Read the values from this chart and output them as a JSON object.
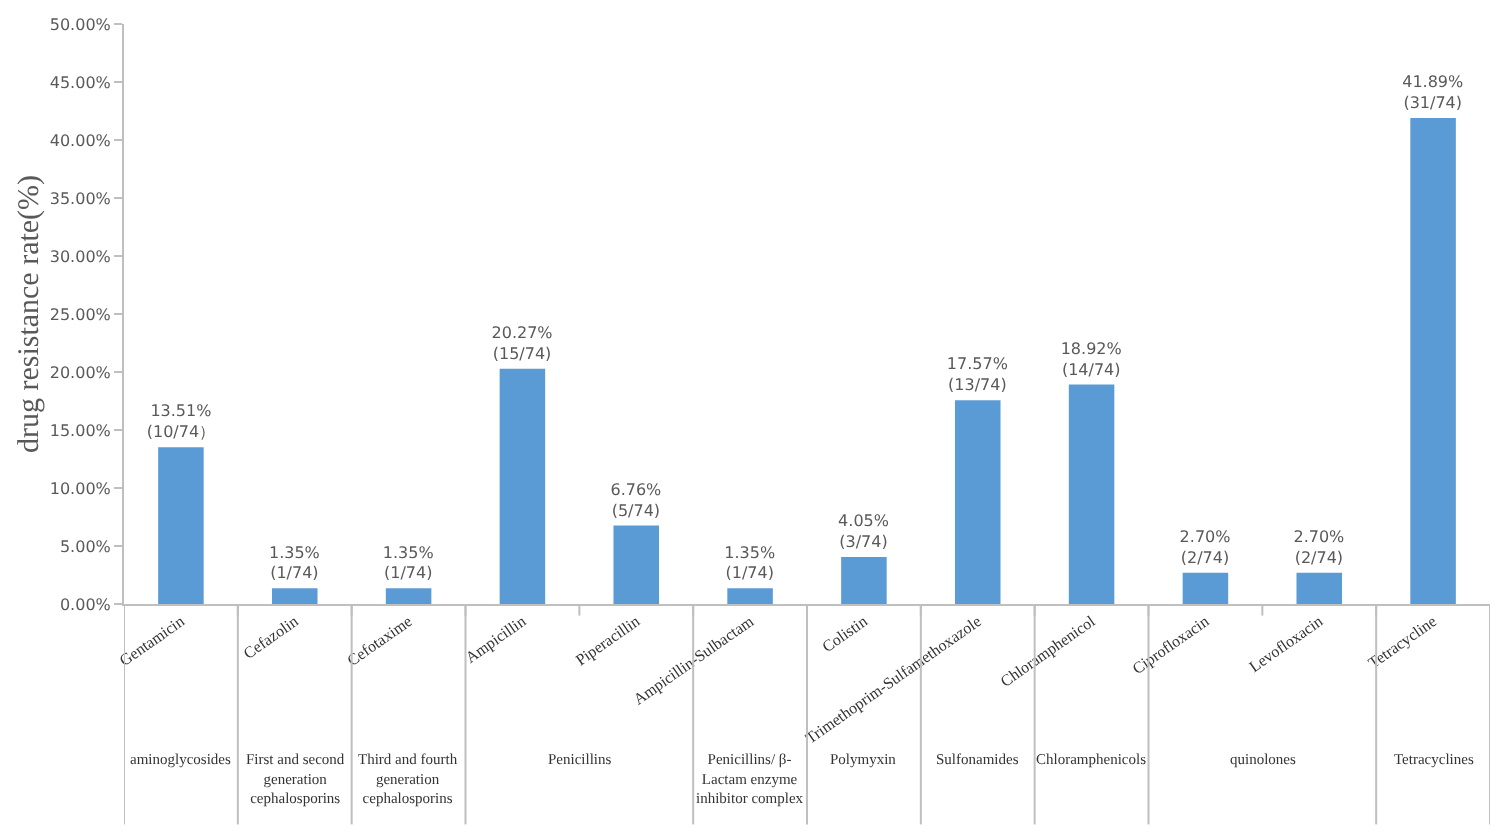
{
  "chart_data": {
    "type": "bar",
    "ylabel": "drug resistance rate(%)",
    "categories": [
      "Gentamicin",
      "Cefazolin",
      "Cefotaxime",
      "Ampicillin",
      "Piperacillin",
      "Ampicillin-Sulbactam",
      "Colistin",
      "Trimethoprim-Sulfamethoxazole",
      "Chloramphenicol",
      "Ciprofloxacin",
      "Levofloxacin",
      "Tetracycline"
    ],
    "values": [
      13.51,
      1.35,
      1.35,
      20.27,
      6.76,
      1.35,
      4.05,
      17.57,
      18.92,
      2.7,
      2.7,
      41.89
    ],
    "value_labels": [
      "13.51%\n(10/74）",
      "1.35%\n(1/74)",
      "1.35%\n(1/74)",
      "20.27%\n(15/74)",
      "6.76%\n(5/74)",
      "1.35%\n(1/74)",
      "4.05%\n(3/74)",
      "17.57%\n(13/74)",
      "18.92%\n(14/74)",
      "2.70%\n(2/74)",
      "2.70%\n(2/74)",
      "41.89%\n(31/74)"
    ],
    "color": "#5b9bd5",
    "ylim": [
      0,
      50
    ],
    "yticks": [
      {
        "value": 0,
        "label": "0.00%"
      },
      {
        "value": 5,
        "label": "5.00%"
      },
      {
        "value": 10,
        "label": "10.00%"
      },
      {
        "value": 15,
        "label": "15.00%"
      },
      {
        "value": 20,
        "label": "20.00%"
      },
      {
        "value": 25,
        "label": "25.00%"
      },
      {
        "value": 30,
        "label": "30.00%"
      },
      {
        "value": 35,
        "label": "35.00%"
      },
      {
        "value": 40,
        "label": "40.00%"
      },
      {
        "value": 45,
        "label": "45.00%"
      },
      {
        "value": 50,
        "label": "50.00%"
      }
    ],
    "annotations": [
      "aminoglycosides",
      "First and second\ngeneration\ncephalosporins",
      "Third and fourth\ngeneration\ncephalosporins",
      "Penicillins",
      "Penicillins/ β-\nLactam enzyme\ninhibitor complex",
      "Polymyxin",
      "Sulfonamides",
      "Chloramphenicols",
      "quinolones",
      "Tetracyclines"
    ],
    "grid": false,
    "legend": false
  }
}
